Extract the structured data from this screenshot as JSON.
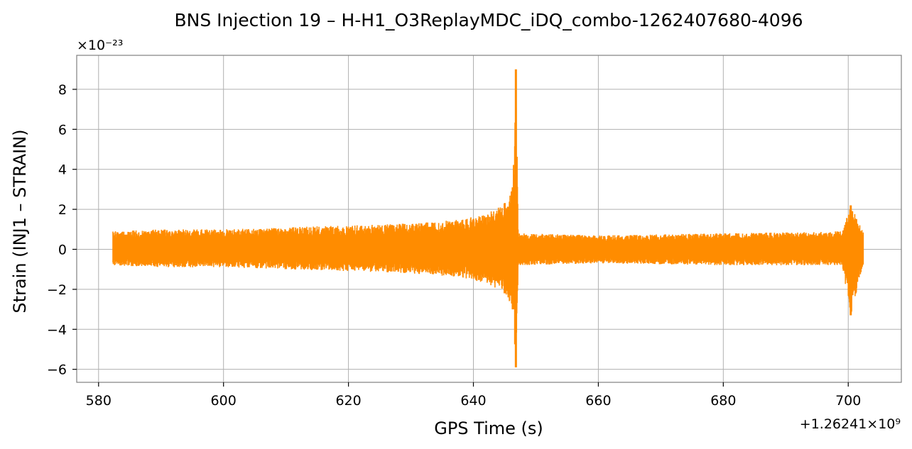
{
  "chart_data": {
    "type": "line",
    "title": "BNS Injection 19 – H-H1_O3ReplayMDC_iDQ_combo-1262407680-4096",
    "xlabel": "GPS Time (s)",
    "ylabel": "Strain (INJ1 – STRAIN)",
    "x_offset_text": "+1.26241×10⁹",
    "y_offset_text": "×10⁻²³",
    "xlim": [
      576.5,
      708.5
    ],
    "ylim": [
      -6.65,
      9.7
    ],
    "x_ticks": [
      580,
      600,
      620,
      640,
      660,
      680,
      700
    ],
    "x_tick_labels": [
      "580",
      "600",
      "620",
      "640",
      "660",
      "680",
      "700"
    ],
    "y_ticks": [
      -6,
      -4,
      -2,
      0,
      2,
      4,
      6,
      8
    ],
    "y_tick_labels": [
      "−6",
      "−4",
      "−2",
      "0",
      "2",
      "4",
      "6",
      "8"
    ],
    "grid": true,
    "color": "#ff8c00",
    "series": [
      {
        "x_range": [
          582.3,
          702.4
        ],
        "envelope": [
          {
            "x": 582.3,
            "upper": 0.9,
            "lower": -0.8
          },
          {
            "x": 590,
            "upper": 1.0,
            "lower": -0.9
          },
          {
            "x": 600,
            "upper": 1.0,
            "lower": -0.9
          },
          {
            "x": 610,
            "upper": 1.1,
            "lower": -1.0
          },
          {
            "x": 620,
            "upper": 1.2,
            "lower": -1.1
          },
          {
            "x": 630,
            "upper": 1.3,
            "lower": -1.2
          },
          {
            "x": 638,
            "upper": 1.5,
            "lower": -1.4
          },
          {
            "x": 642,
            "upper": 1.8,
            "lower": -1.7
          },
          {
            "x": 645,
            "upper": 2.3,
            "lower": -2.2
          },
          {
            "x": 646.3,
            "upper": 3.1,
            "lower": -3.0
          },
          {
            "x": 646.8,
            "upper": 9.0,
            "lower": -5.9
          },
          {
            "x": 647.2,
            "upper": 0.8,
            "lower": -0.8
          },
          {
            "x": 660,
            "upper": 0.7,
            "lower": -0.7
          },
          {
            "x": 680,
            "upper": 0.8,
            "lower": -0.8
          },
          {
            "x": 699,
            "upper": 0.9,
            "lower": -0.8
          },
          {
            "x": 700.4,
            "upper": 2.2,
            "lower": -3.3
          },
          {
            "x": 702.4,
            "upper": 0.9,
            "lower": -0.8
          }
        ]
      }
    ]
  }
}
